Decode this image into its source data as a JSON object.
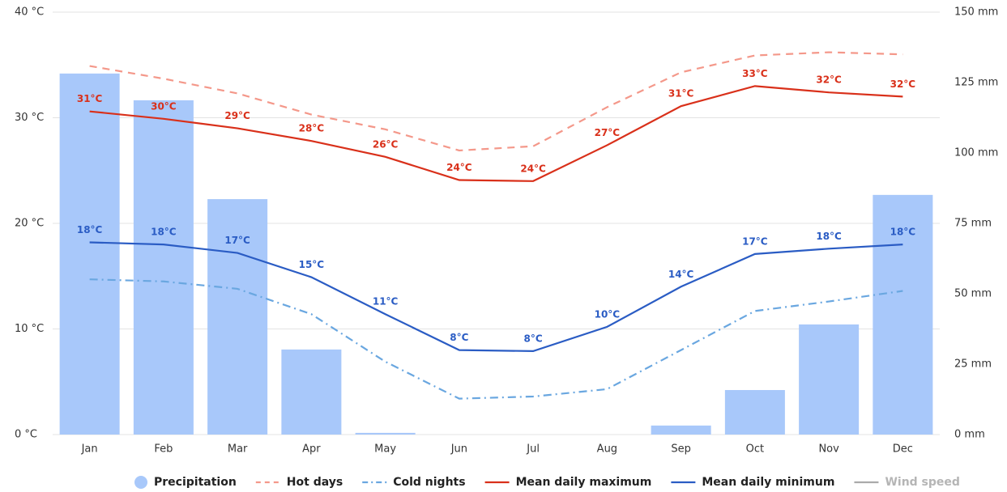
{
  "chart_data": {
    "type": "combo",
    "categories": [
      "Jan",
      "Feb",
      "Mar",
      "Apr",
      "May",
      "Jun",
      "Jul",
      "Aug",
      "Sep",
      "Oct",
      "Nov",
      "Dec"
    ],
    "ylim": [
      0,
      40
    ],
    "yticks": [
      {
        "value": 0,
        "label": "0 °C"
      },
      {
        "value": 10,
        "label": "10 °C"
      },
      {
        "value": 20,
        "label": "20 °C"
      },
      {
        "value": 30,
        "label": "30 °C"
      },
      {
        "value": 40,
        "label": "40 °C"
      }
    ],
    "y2lim": [
      0,
      150
    ],
    "y2ticks": [
      {
        "value": 0,
        "label": "0 mm"
      },
      {
        "value": 25,
        "label": "25 mm"
      },
      {
        "value": 50,
        "label": "50 mm"
      },
      {
        "value": 75,
        "label": "75 mm"
      },
      {
        "value": 100,
        "label": "100 mm"
      },
      {
        "value": 125,
        "label": "125 mm"
      },
      {
        "value": 150,
        "label": "150 mm"
      }
    ],
    "grid": true,
    "legend": "bottom",
    "series": [
      {
        "name": "Precipitation",
        "type": "bar",
        "axis": "y2",
        "color": "#a8c8fa",
        "values": [
          128.2,
          118.7,
          83.6,
          30.2,
          0.6,
          0,
          0,
          0,
          3.2,
          15.8,
          39.1,
          85.1
        ]
      },
      {
        "name": "Hot days",
        "type": "line",
        "dash": "dashed",
        "color": "#f4988a",
        "values": [
          34.9,
          33.7,
          32.3,
          30.3,
          28.9,
          26.9,
          27.3,
          31.0,
          34.3,
          35.9,
          36.2,
          36.0
        ]
      },
      {
        "name": "Cold nights",
        "type": "line",
        "dash": "dashdot",
        "color": "#6aa7e0",
        "values": [
          14.7,
          14.5,
          13.8,
          11.4,
          6.9,
          3.4,
          3.6,
          4.3,
          8.0,
          11.7,
          12.6,
          13.6
        ]
      },
      {
        "name": "Mean daily maximum",
        "type": "line",
        "dash": "solid",
        "color": "#d9301a",
        "values": [
          30.6,
          29.9,
          29.0,
          27.8,
          26.3,
          24.1,
          24.0,
          27.4,
          31.1,
          33.0,
          32.4,
          32.0
        ],
        "value_labels": [
          "31°C",
          "30°C",
          "29°C",
          "28°C",
          "26°C",
          "24°C",
          "24°C",
          "27°C",
          "31°C",
          "33°C",
          "32°C",
          "32°C"
        ]
      },
      {
        "name": "Mean daily minimum",
        "type": "line",
        "dash": "solid",
        "color": "#2a5cc4",
        "values": [
          18.2,
          18.0,
          17.2,
          14.9,
          11.4,
          8.0,
          7.9,
          10.2,
          14.0,
          17.1,
          17.6,
          18.0
        ],
        "value_labels": [
          "18°C",
          "18°C",
          "17°C",
          "15°C",
          "11°C",
          "8°C",
          "8°C",
          "10°C",
          "14°C",
          "17°C",
          "18°C",
          "18°C"
        ]
      },
      {
        "name": "Wind speed",
        "type": "line",
        "dash": "solid",
        "color": "#aaaaaa",
        "visible": false
      }
    ]
  }
}
